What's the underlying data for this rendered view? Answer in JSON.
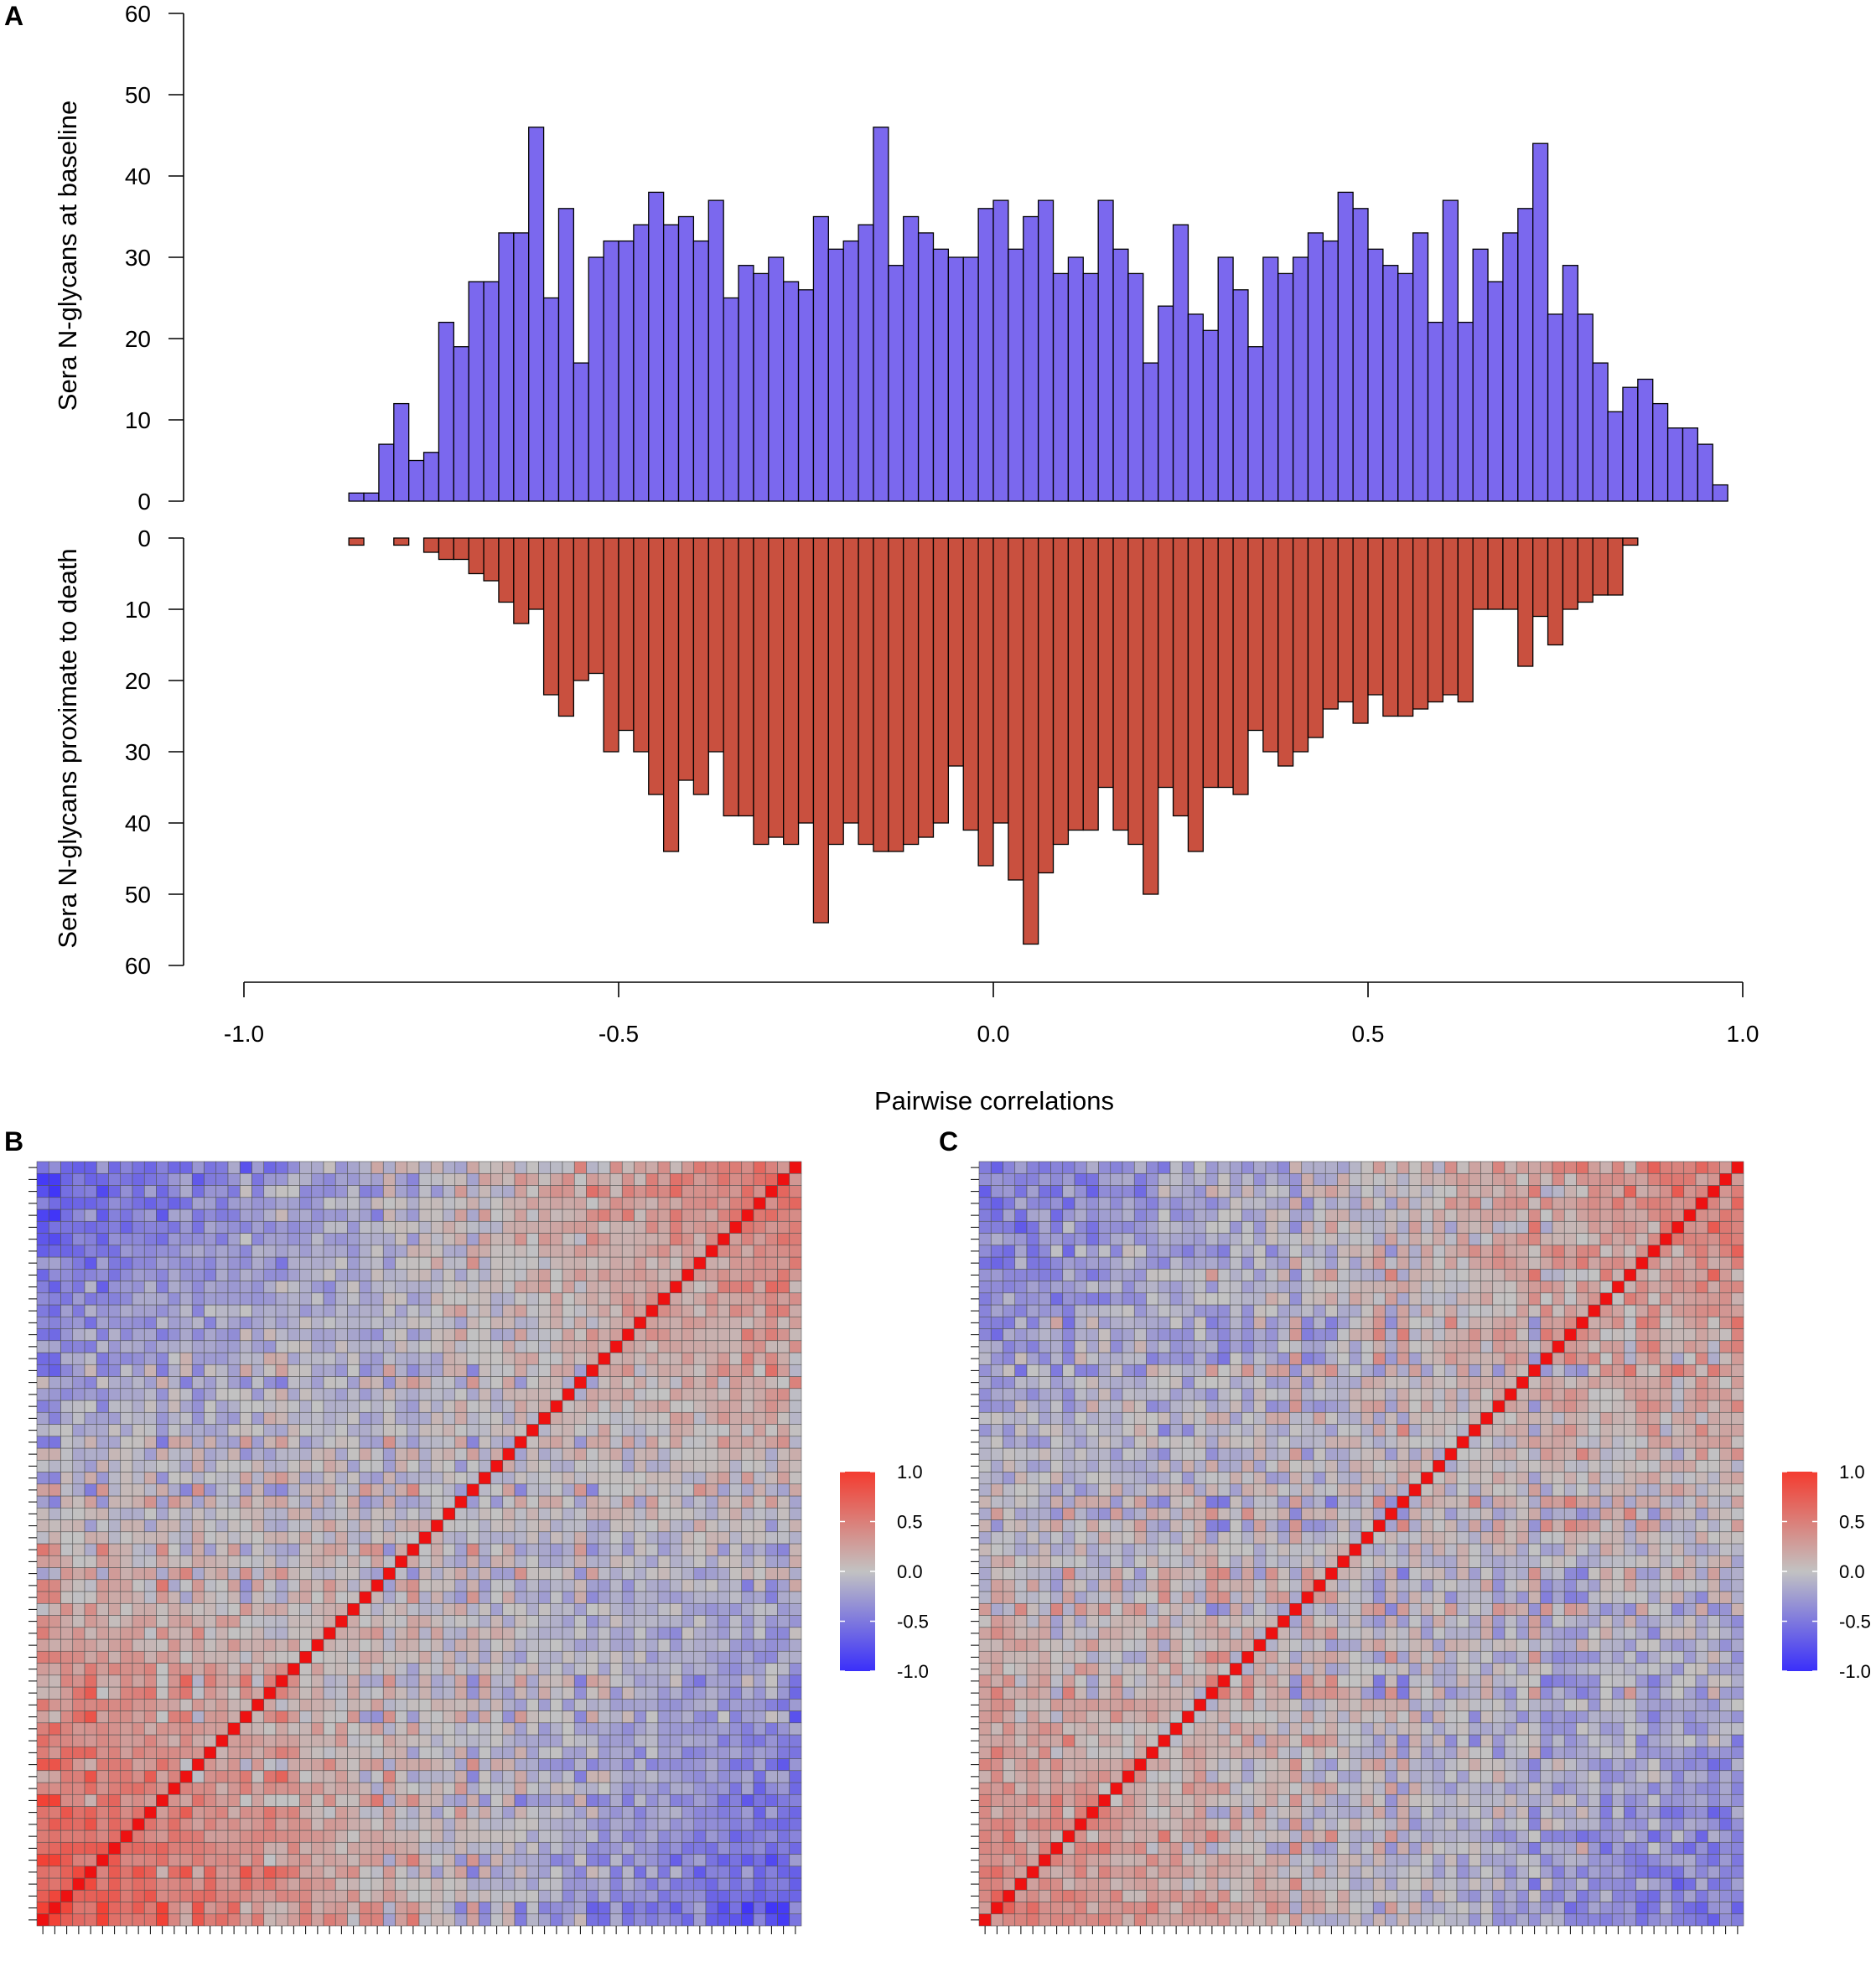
{
  "panels": {
    "a": "A",
    "b": "B",
    "c": "C"
  },
  "chart_data": [
    {
      "type": "bar",
      "title": "",
      "xlabel": "Pairwise correlations",
      "xlim": [
        -1.0,
        1.0
      ],
      "xticks": [
        "-1.0",
        "-0.5",
        "0.0",
        "0.5",
        "1.0"
      ],
      "bin_width": 0.02,
      "bin_start": -0.86,
      "series": [
        {
          "name": "Sera N-glycans at baseline",
          "ylabel": "Sera N-glycans at baseline",
          "color": "#7b68ee",
          "ylim": [
            0,
            60
          ],
          "yticks": [
            "0",
            "10",
            "20",
            "30",
            "40",
            "50",
            "60"
          ],
          "values": [
            1,
            1,
            7,
            12,
            5,
            6,
            22,
            19,
            27,
            27,
            33,
            33,
            46,
            25,
            36,
            17,
            30,
            32,
            32,
            34,
            38,
            34,
            35,
            32,
            37,
            25,
            29,
            28,
            30,
            27,
            26,
            35,
            31,
            32,
            34,
            46,
            29,
            35,
            33,
            31,
            30,
            30,
            36,
            37,
            31,
            35,
            37,
            28,
            30,
            28,
            37,
            31,
            28,
            17,
            24,
            34,
            23,
            21,
            30,
            26,
            19,
            30,
            28,
            30,
            33,
            32,
            38,
            36,
            31,
            29,
            28,
            33,
            22,
            37,
            22,
            31,
            27,
            33,
            36,
            44,
            23,
            29,
            23,
            17,
            11,
            14,
            15,
            12,
            9,
            9,
            7,
            2
          ]
        },
        {
          "name": "Sera N-glycans proximate to death",
          "ylabel": "Sera N-glycans proximate to death",
          "color": "#c9503f",
          "ylim": [
            0,
            60
          ],
          "yticks": [
            "0",
            "10",
            "20",
            "30",
            "40",
            "50",
            "60"
          ],
          "values": [
            1,
            0,
            0,
            1,
            0,
            2,
            3,
            3,
            5,
            6,
            9,
            12,
            10,
            22,
            25,
            20,
            19,
            30,
            27,
            30,
            36,
            44,
            34,
            36,
            30,
            39,
            39,
            43,
            42,
            43,
            40,
            54,
            43,
            40,
            43,
            44,
            44,
            43,
            42,
            40,
            32,
            41,
            46,
            40,
            48,
            57,
            47,
            43,
            41,
            41,
            35,
            41,
            43,
            50,
            35,
            39,
            44,
            35,
            35,
            36,
            27,
            30,
            32,
            30,
            28,
            24,
            23,
            26,
            22,
            25,
            25,
            24,
            23,
            22,
            23,
            10,
            10,
            10,
            18,
            11,
            15,
            10,
            9,
            8,
            8,
            1
          ]
        }
      ]
    },
    {
      "type": "heatmap",
      "title": "",
      "colorbar": {
        "ticks": [
          "1.0",
          "0.5",
          "0.0",
          "-0.5",
          "-1.0"
        ],
        "range": [
          -1.0,
          1.0
        ],
        "low": "#3a2ffa",
        "mid": "#c2c2c2",
        "high": "#f43b2f"
      }
    },
    {
      "type": "heatmap",
      "title": "",
      "colorbar": {
        "ticks": [
          "1.0",
          "0.5",
          "0.0",
          "-0.5",
          "-1.0"
        ],
        "range": [
          -1.0,
          1.0
        ],
        "low": "#3a2ffa",
        "mid": "#c2c2c2",
        "high": "#f43b2f"
      }
    }
  ]
}
